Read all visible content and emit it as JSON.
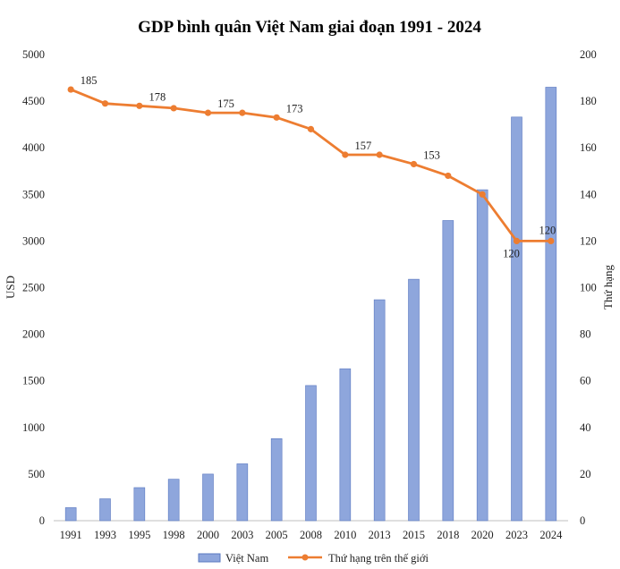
{
  "colors": {
    "bar": "#8ea6dc",
    "bar_stroke": "#5a78c0",
    "line": "#ed7d31"
  },
  "chart_data": {
    "type": "bar",
    "title": "GDP bình quân Việt Nam giai đoạn 1991 - 2024",
    "categories": [
      "1991",
      "1993",
      "1995",
      "1998",
      "2000",
      "2003",
      "2005",
      "2008",
      "2010",
      "2013",
      "2015",
      "2018",
      "2020",
      "2023",
      "2024"
    ],
    "ylabel": "USD",
    "y2label": "Thứ hạng",
    "ylim": [
      0,
      5000
    ],
    "y2lim": [
      0,
      200
    ],
    "yticks": [
      "0",
      "500",
      "1000",
      "1500",
      "2000",
      "2500",
      "3000",
      "3500",
      "4000",
      "4500",
      "5000"
    ],
    "y2ticks": [
      "0",
      "20",
      "40",
      "60",
      "80",
      "100",
      "120",
      "140",
      "160",
      "180",
      "200"
    ],
    "grid": false,
    "legend_position": "bottom",
    "series": [
      {
        "name": "Việt Nam",
        "type": "bar",
        "axis": "left",
        "values": [
          140,
          235,
          355,
          445,
          500,
          610,
          880,
          1450,
          1630,
          2370,
          2590,
          3220,
          3550,
          4330,
          4650
        ]
      },
      {
        "name": "Thứ hạng trên thế giới",
        "type": "line",
        "axis": "right",
        "values": [
          185,
          179,
          178,
          177,
          175,
          175,
          173,
          168,
          157,
          157,
          153,
          148,
          140,
          120,
          120
        ],
        "labels": [
          "185",
          "",
          "178",
          "",
          "175",
          "",
          "173",
          "",
          "157",
          "",
          "153",
          "",
          "",
          "120",
          "120"
        ]
      }
    ]
  }
}
